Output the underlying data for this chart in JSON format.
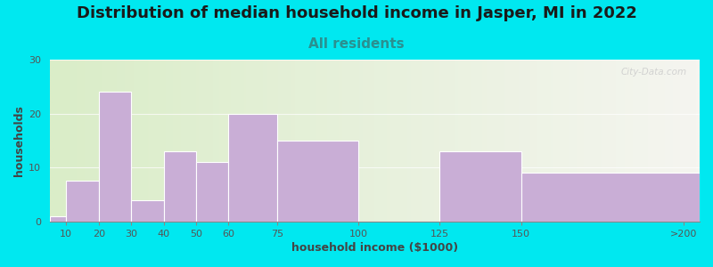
{
  "title": "Distribution of median household income in Jasper, MI in 2022",
  "subtitle": "All residents",
  "xlabel": "household income ($1000)",
  "ylabel": "households",
  "categories": [
    "10",
    "20",
    "30",
    "40",
    "50",
    "60",
    "75",
    "100",
    "125",
    "150",
    ">200"
  ],
  "bar_lefts": [
    5,
    10,
    20,
    30,
    40,
    50,
    60,
    75,
    100,
    125,
    150
  ],
  "bar_widths": [
    5,
    10,
    10,
    10,
    10,
    10,
    15,
    25,
    25,
    25,
    55
  ],
  "tick_positions": [
    10,
    20,
    30,
    40,
    50,
    60,
    75,
    100,
    125,
    150,
    200
  ],
  "values": [
    1,
    7.5,
    24,
    4,
    13,
    11,
    20,
    15,
    0,
    13,
    9
  ],
  "bar_color": "#c9aed6",
  "bar_edge_color": "#ffffff",
  "ylim": [
    0,
    30
  ],
  "xlim": [
    5,
    205
  ],
  "yticks": [
    0,
    10,
    20,
    30
  ],
  "bg_color_left": "#daedc8",
  "bg_color_right": "#f5f5f0",
  "outer_bg": "#00e8f0",
  "title_fontsize": 13,
  "subtitle_fontsize": 11,
  "subtitle_color": "#2a9090",
  "axis_label_fontsize": 9,
  "tick_fontsize": 8,
  "watermark": "City-Data.com"
}
